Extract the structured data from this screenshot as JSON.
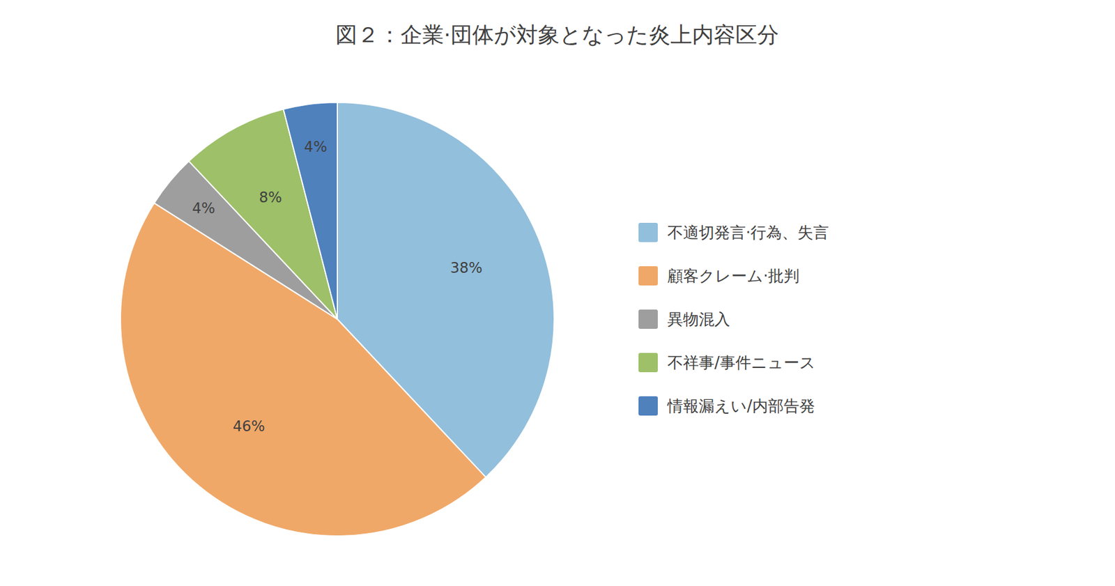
{
  "chart_data": {
    "type": "pie",
    "title": "図２：企業·団体が対象となった炎上内容区分",
    "categories": [
      "不適切発言·行為、失言",
      "顧客クレーム·批判",
      "異物混入",
      "不祥事/事件ニュース",
      "情報漏えい/内部告発"
    ],
    "values": [
      38,
      46,
      4,
      8,
      4
    ],
    "value_labels": [
      "38%",
      "46%",
      "4%",
      "8%",
      "4%"
    ],
    "colors": [
      "#92BFDC",
      "#F0A868",
      "#9E9E9E",
      "#9DC068",
      "#4F81BD"
    ],
    "data_labels": true,
    "legend": "right"
  }
}
